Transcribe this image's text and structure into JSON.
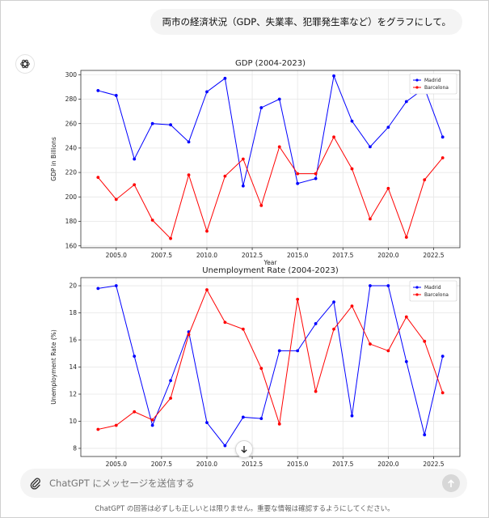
{
  "user_message": "両市の経済状況（GDP、失業率、犯罪発生率など）をグラフにして。",
  "icons": {
    "assistant": "openai-logo-icon",
    "scroll_down": "arrow-down-icon",
    "attach": "paperclip-icon",
    "send": "arrow-up-icon"
  },
  "composer": {
    "placeholder": "ChatGPT にメッセージを送信する"
  },
  "disclaimer": "ChatGPT の回答は必ずしも正しいとは限りません。重要な情報は確認するようにしてください。",
  "colors": {
    "madrid": "#0000ff",
    "barcelona": "#ff0000"
  },
  "chart_data": [
    {
      "type": "line",
      "title": "GDP (2004-2023)",
      "xlabel": "Year",
      "ylabel": "GDP in Billions",
      "x": [
        2004,
        2005,
        2006,
        2007,
        2008,
        2009,
        2010,
        2011,
        2012,
        2013,
        2014,
        2015,
        2016,
        2017,
        2018,
        2019,
        2020,
        2021,
        2022,
        2023
      ],
      "xlim": [
        2003.05,
        2023.95
      ],
      "ylim": [
        158.5,
        303.5
      ],
      "xticks": [
        2005.0,
        2007.5,
        2010.0,
        2012.5,
        2015.0,
        2017.5,
        2020.0,
        2022.5
      ],
      "xtick_labels": [
        "2005.0",
        "2007.5",
        "2010.0",
        "2012.5",
        "2015.0",
        "2017.5",
        "2020.0",
        "2022.5"
      ],
      "yticks": [
        160,
        180,
        200,
        220,
        240,
        260,
        280,
        300
      ],
      "ytick_labels": [
        "160",
        "180",
        "200",
        "220",
        "240",
        "260",
        "280",
        "300"
      ],
      "grid": true,
      "legend": "top-right",
      "series": [
        {
          "name": "Madrid",
          "color": "#0000ff",
          "values": [
            287,
            283,
            231,
            260,
            259,
            245,
            286,
            297,
            209,
            273,
            280,
            211,
            215,
            299,
            262,
            241,
            257,
            278,
            289,
            249
          ]
        },
        {
          "name": "Barcelona",
          "color": "#ff0000",
          "values": [
            216,
            198,
            210,
            181,
            166,
            218,
            172,
            217,
            231,
            193,
            241,
            219,
            219,
            249,
            223,
            182,
            207,
            167,
            214,
            232
          ]
        }
      ]
    },
    {
      "type": "line",
      "title": "Unemployment Rate (2004-2023)",
      "xlabel": "Year",
      "ylabel": "Unemployment Rate (%)",
      "x": [
        2004,
        2005,
        2006,
        2007,
        2008,
        2009,
        2010,
        2011,
        2012,
        2013,
        2014,
        2015,
        2016,
        2017,
        2018,
        2019,
        2020,
        2021,
        2022,
        2023
      ],
      "xlim": [
        2003.05,
        2023.95
      ],
      "ylim": [
        7.4,
        20.6
      ],
      "xticks": [
        2005.0,
        2007.5,
        2010.0,
        2012.5,
        2015.0,
        2017.5,
        2020.0,
        2022.5
      ],
      "xtick_labels": [
        "2005.0",
        "2007.5",
        "2010.0",
        "2012.5",
        "2015.0",
        "2017.5",
        "2020.0",
        "2022.5"
      ],
      "yticks": [
        8,
        10,
        12,
        14,
        16,
        18,
        20
      ],
      "ytick_labels": [
        "8",
        "10",
        "12",
        "14",
        "16",
        "18",
        "20"
      ],
      "grid": true,
      "legend": "top-right",
      "series": [
        {
          "name": "Madrid",
          "color": "#0000ff",
          "values": [
            19.8,
            20.0,
            14.8,
            9.7,
            13.0,
            16.6,
            9.9,
            8.2,
            10.3,
            10.2,
            15.2,
            15.2,
            17.2,
            18.8,
            10.4,
            20.0,
            20.0,
            14.4,
            9.0,
            14.8
          ]
        },
        {
          "name": "Barcelona",
          "color": "#ff0000",
          "values": [
            9.4,
            9.7,
            10.7,
            10.1,
            11.7,
            16.4,
            19.7,
            17.3,
            16.8,
            13.9,
            9.8,
            19.0,
            12.2,
            16.8,
            18.5,
            15.7,
            15.2,
            17.7,
            15.9,
            12.1
          ]
        }
      ]
    }
  ]
}
